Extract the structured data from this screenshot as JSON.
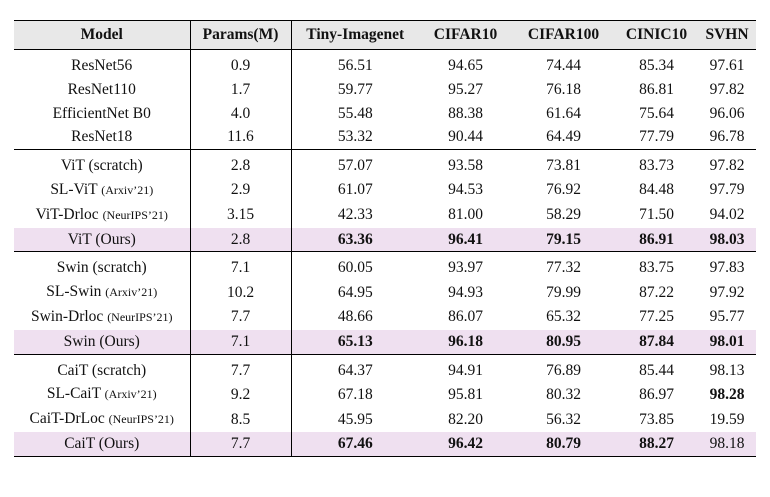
{
  "headers": [
    "Model",
    "Params(M)",
    "Tiny-Imagenet",
    "CIFAR10",
    "CIFAR100",
    "CINIC10",
    "SVHN"
  ],
  "groups": [
    {
      "rows": [
        {
          "model": "ResNet56",
          "venue": "",
          "params": "0.9",
          "tiny": "56.51",
          "c10": "94.65",
          "c100": "74.44",
          "cinic": "85.34",
          "svhn": "97.61"
        },
        {
          "model": "ResNet110",
          "venue": "",
          "params": "1.7",
          "tiny": "59.77",
          "c10": "95.27",
          "c100": "76.18",
          "cinic": "86.81",
          "svhn": "97.82"
        },
        {
          "model": "EfficientNet B0",
          "venue": "",
          "params": "4.0",
          "tiny": "55.48",
          "c10": "88.38",
          "c100": "61.64",
          "cinic": "75.64",
          "svhn": "96.06"
        },
        {
          "model": "ResNet18",
          "venue": "",
          "params": "11.6",
          "tiny": "53.32",
          "c10": "90.44",
          "c100": "64.49",
          "cinic": "77.79",
          "svhn": "96.78"
        }
      ]
    },
    {
      "rows": [
        {
          "model": "ViT (scratch)",
          "venue": "",
          "params": "2.8",
          "tiny": "57.07",
          "c10": "93.58",
          "c100": "73.81",
          "cinic": "83.73",
          "svhn": "97.82"
        },
        {
          "model": "SL-ViT",
          "venue": "(Arxiv’21)",
          "params": "2.9",
          "tiny": "61.07",
          "c10": "94.53",
          "c100": "76.92",
          "cinic": "84.48",
          "svhn": "97.79"
        },
        {
          "model": "ViT-Drloc",
          "venue": "(NeurIPS’21)",
          "params": "3.15",
          "tiny": "42.33",
          "c10": "81.00",
          "c100": "58.29",
          "cinic": "71.50",
          "svhn": "94.02"
        },
        {
          "model": "ViT (Ours)",
          "venue": "",
          "params": "2.8",
          "tiny": "63.36",
          "c10": "96.41",
          "c100": "79.15",
          "cinic": "86.91",
          "svhn": "98.03"
        }
      ]
    },
    {
      "rows": [
        {
          "model": "Swin (scratch)",
          "venue": "",
          "params": "7.1",
          "tiny": "60.05",
          "c10": "93.97",
          "c100": "77.32",
          "cinic": "83.75",
          "svhn": "97.83"
        },
        {
          "model": "SL-Swin",
          "venue": "(Arxiv’21)",
          "params": "10.2",
          "tiny": "64.95",
          "c10": "94.93",
          "c100": "79.99",
          "cinic": "87.22",
          "svhn": "97.92"
        },
        {
          "model": "Swin-Drloc",
          "venue": "(NeurIPS’21)",
          "params": "7.7",
          "tiny": "48.66",
          "c10": "86.07",
          "c100": "65.32",
          "cinic": "77.25",
          "svhn": "95.77"
        },
        {
          "model": "Swin (Ours)",
          "venue": "",
          "params": "7.1",
          "tiny": "65.13",
          "c10": "96.18",
          "c100": "80.95",
          "cinic": "87.84",
          "svhn": "98.01"
        }
      ]
    },
    {
      "rows": [
        {
          "model": "CaiT (scratch)",
          "venue": "",
          "params": "7.7",
          "tiny": "64.37",
          "c10": "94.91",
          "c100": "76.89",
          "cinic": "85.44",
          "svhn": "98.13"
        },
        {
          "model": "SL-CaiT",
          "venue": "(Arxiv’21)",
          "params": "9.2",
          "tiny": "67.18",
          "c10": "95.81",
          "c100": "80.32",
          "cinic": "86.97",
          "svhn": "98.28"
        },
        {
          "model": "CaiT-DrLoc",
          "venue": "(NeurIPS’21)",
          "params": "8.5",
          "tiny": "45.95",
          "c10": "82.20",
          "c100": "56.32",
          "cinic": "73.85",
          "svhn": "19.59"
        },
        {
          "model": "CaiT (Ours)",
          "venue": "",
          "params": "7.7",
          "tiny": "67.46",
          "c10": "96.42",
          "c100": "80.79",
          "cinic": "88.27",
          "svhn": "98.18"
        }
      ]
    }
  ]
}
